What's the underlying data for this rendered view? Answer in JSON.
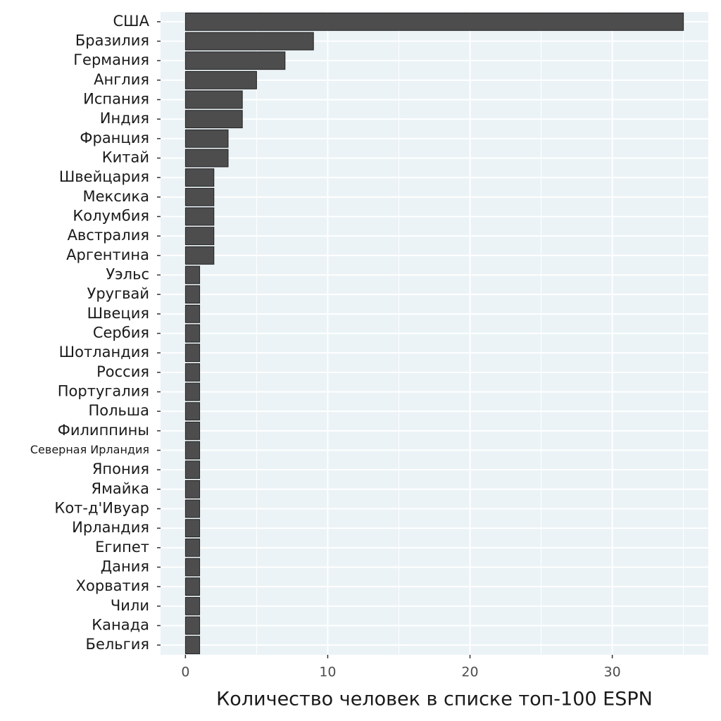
{
  "chart_data": {
    "type": "barh",
    "categories": [
      "США",
      "Бразилия",
      "Германия",
      "Англия",
      "Испания",
      "Индия",
      "Франция",
      "Китай",
      "Швейцария",
      "Мексика",
      "Колумбия",
      "Австралия",
      "Аргентина",
      "Уэльс",
      "Уругвай",
      "Швеция",
      "Сербия",
      "Шотландия",
      "Россия",
      "Португалия",
      "Польша",
      "Филиппины",
      "Северная Ирландия",
      "Япония",
      "Ямайка",
      "Кот-д'Ивуар",
      "Ирландия",
      "Египет",
      "Дания",
      "Хорватия",
      "Чили",
      "Канада",
      "Бельгия"
    ],
    "values": [
      35,
      9,
      7,
      5,
      4,
      4,
      3,
      3,
      2,
      2,
      2,
      2,
      2,
      1,
      1,
      1,
      1,
      1,
      1,
      1,
      1,
      1,
      1,
      1,
      1,
      1,
      1,
      1,
      1,
      1,
      1,
      1,
      1
    ],
    "color": "#4d4d4d",
    "xlabel": "Количество человек в списке топ-100 ESPN",
    "xlim": [
      -1.75,
      36.75
    ],
    "xticks": [
      0,
      10,
      20,
      30
    ],
    "minor_xticks": [
      5,
      15,
      25,
      35
    ],
    "grid": true
  }
}
